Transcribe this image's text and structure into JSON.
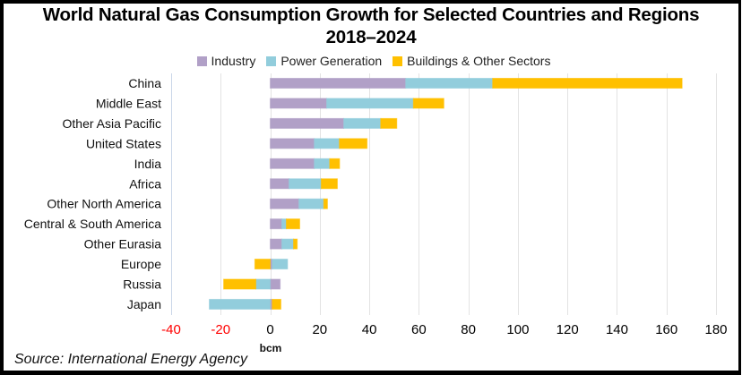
{
  "chart_data": {
    "type": "bar",
    "orientation": "horizontal",
    "stacked": true,
    "title": "World Natural Gas Consumption Growth for Selected Countries and Regions",
    "subtitle": "2018–2024",
    "xlabel": "bcm",
    "ylabel": "",
    "xlim": [
      -40,
      180
    ],
    "xticks": [
      -40,
      -20,
      0,
      20,
      40,
      60,
      80,
      100,
      120,
      140,
      160,
      180
    ],
    "negative_tick_color": "#FF0000",
    "grid": true,
    "legend_position": "top",
    "categories": [
      "China",
      "Middle East",
      "Other Asia Pacific",
      "United States",
      "India",
      "Africa",
      "Other North America",
      "Central & South America",
      "Other Eurasia",
      "Europe",
      "Russia",
      "Japan"
    ],
    "series": [
      {
        "name": "Industry",
        "color": "#B1A0C7",
        "values": [
          54.7,
          22.8,
          29.7,
          17.8,
          17.8,
          7.6,
          11.6,
          4.7,
          4.7,
          0.8,
          4.0,
          0.8
        ]
      },
      {
        "name": "Power Generation",
        "color": "#92CDDC",
        "values": [
          35.1,
          35.0,
          14.9,
          10.1,
          6.2,
          13.0,
          10.0,
          1.8,
          4.7,
          6.2,
          -5.8,
          -24.6
        ]
      },
      {
        "name": "Buildings & Other Sectors",
        "color": "#FFC000",
        "values": [
          76.5,
          12.3,
          6.5,
          11.2,
          4.0,
          6.5,
          1.5,
          5.4,
          1.5,
          -6.2,
          -13.0,
          3.5
        ]
      }
    ]
  },
  "source": "Source: International Energy Agency"
}
